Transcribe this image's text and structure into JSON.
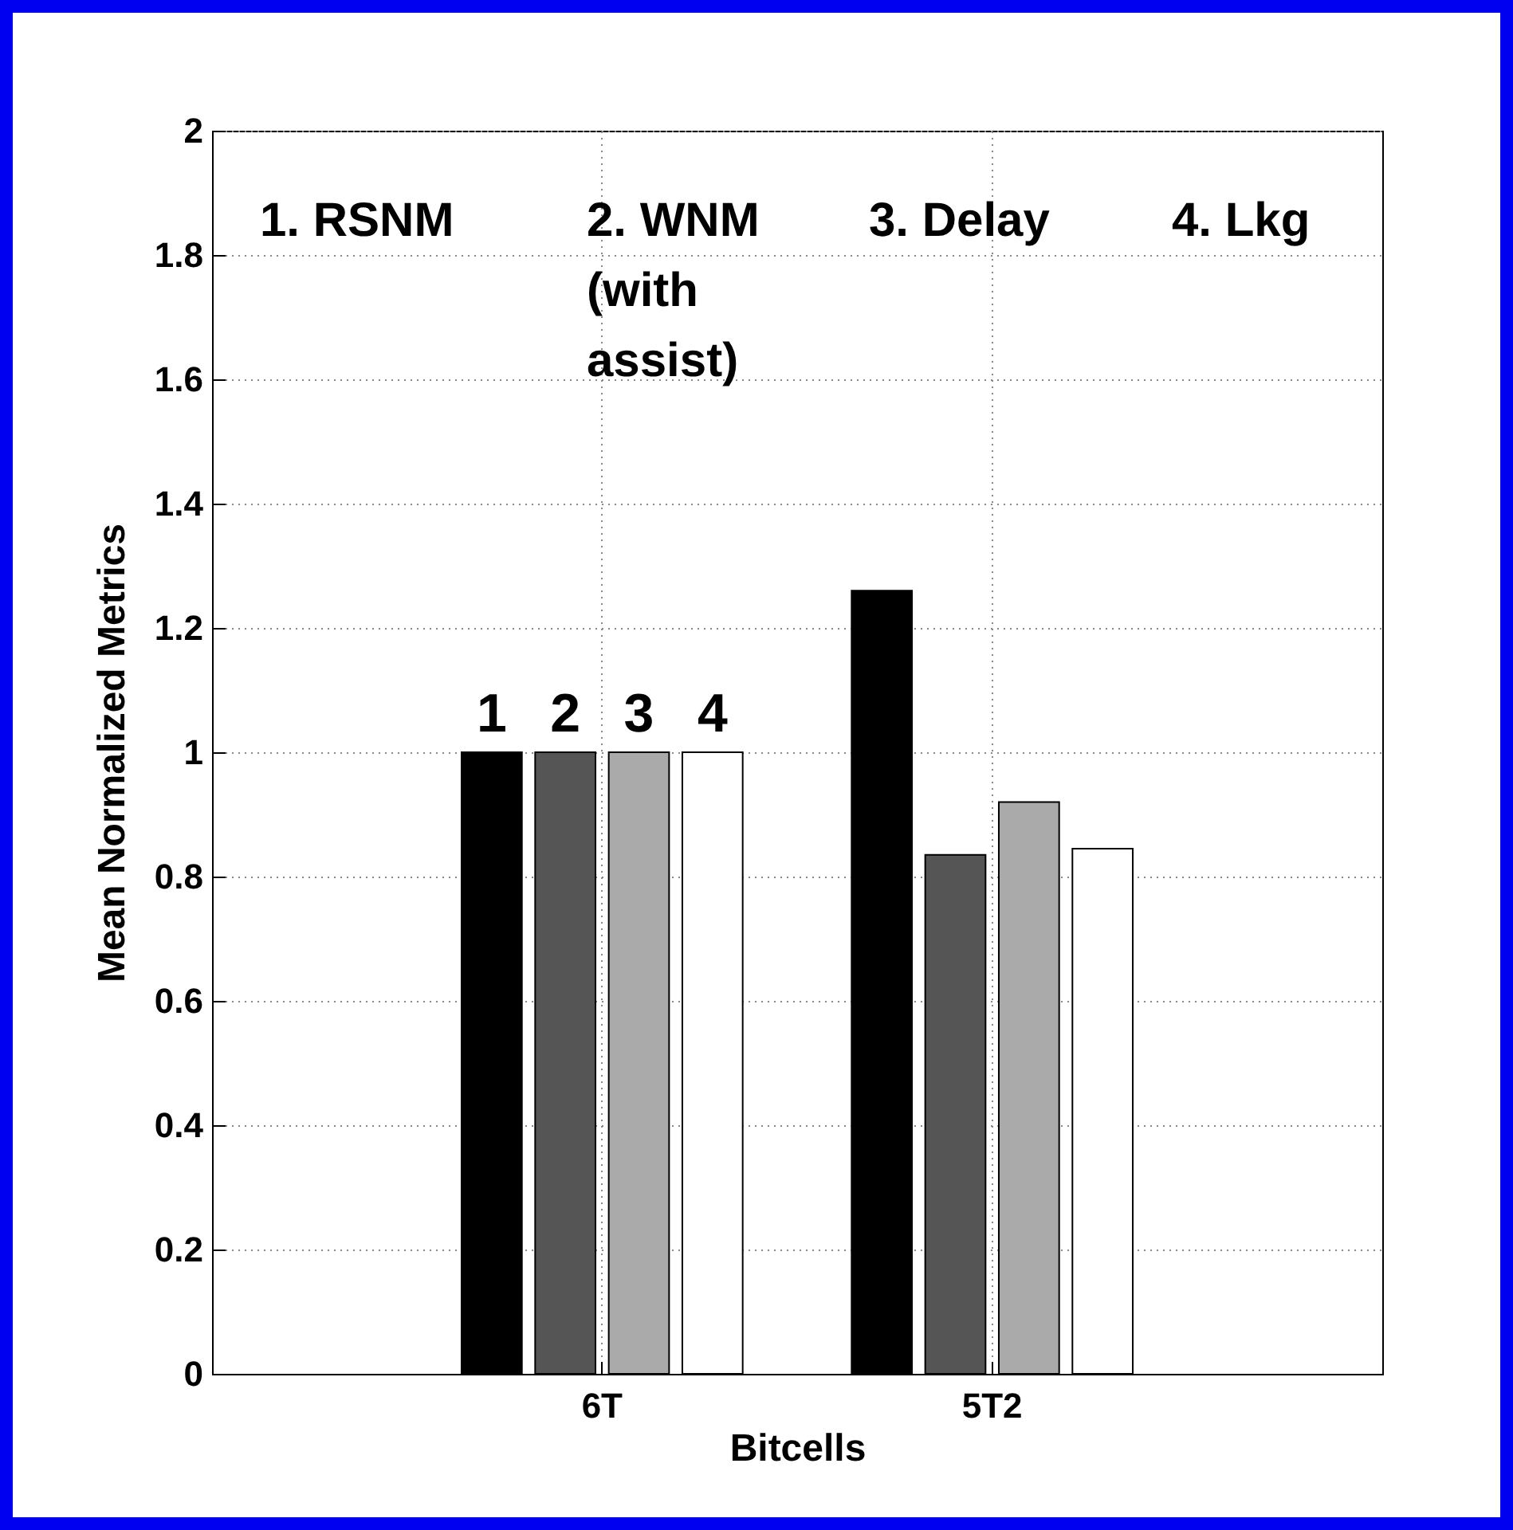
{
  "chart_data": {
    "type": "bar",
    "xlabel": "Bitcells",
    "ylabel": "Mean Normalized Metrics",
    "categories": [
      "6T",
      "5T2"
    ],
    "series": [
      {
        "color": "#000000",
        "values": [
          1,
          1.26
        ]
      },
      {
        "color": "#555555",
        "values": [
          1,
          0.835
        ]
      },
      {
        "color": "#aaaaaa",
        "values": [
          1,
          0.92
        ]
      },
      {
        "color": "#ffffff",
        "values": [
          1,
          0.845
        ]
      }
    ],
    "ylim": [
      0,
      2
    ],
    "yticks": [
      0,
      0.2,
      0.4,
      0.6,
      0.8,
      1,
      1.2,
      1.4,
      1.6,
      1.8,
      2
    ],
    "grid": true,
    "legend": false,
    "annotations": [
      "1. RSNM",
      "2. WNM\n(with\nassist)",
      "3. Delay",
      "4. Lkg",
      {
        "text": "1",
        "x": "6T",
        "y": 1
      },
      {
        "text": "2",
        "x": "6T",
        "y": 1
      },
      {
        "text": "3",
        "x": "6T",
        "y": 1
      },
      {
        "text": "4",
        "x": "6T",
        "y": 1
      }
    ]
  }
}
